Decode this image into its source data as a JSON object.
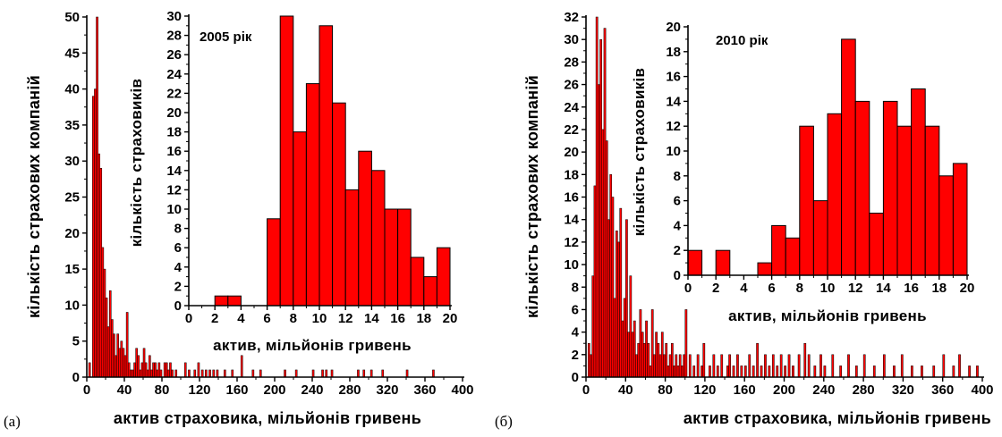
{
  "colors": {
    "bar_fill": "#ff0000",
    "bar_edge": "#000000",
    "axis": "#000000"
  },
  "chart_data": [
    {
      "panel_label": "(а)",
      "type": "bar",
      "xlabel": "актив страховика, мільйонів гривень",
      "ylabel": "кількість страхових компаній",
      "xlim": [
        0,
        400
      ],
      "ylim": [
        0,
        50
      ],
      "xticks": [
        0,
        40,
        80,
        120,
        160,
        200,
        240,
        280,
        320,
        360,
        400
      ],
      "yticks": [
        0,
        5,
        10,
        15,
        20,
        25,
        30,
        35,
        40,
        45,
        50
      ],
      "bin_width": 2,
      "bars": [
        [
          2,
          2
        ],
        [
          4,
          0
        ],
        [
          6,
          39
        ],
        [
          8,
          40
        ],
        [
          10,
          50
        ],
        [
          12,
          31
        ],
        [
          14,
          29
        ],
        [
          16,
          18
        ],
        [
          18,
          15
        ],
        [
          20,
          11
        ],
        [
          22,
          7
        ],
        [
          24,
          12
        ],
        [
          26,
          8
        ],
        [
          28,
          6
        ],
        [
          30,
          3
        ],
        [
          32,
          6
        ],
        [
          34,
          4
        ],
        [
          36,
          5
        ],
        [
          38,
          4
        ],
        [
          40,
          3
        ],
        [
          42,
          9
        ],
        [
          44,
          2
        ],
        [
          46,
          1
        ],
        [
          48,
          1
        ],
        [
          50,
          2
        ],
        [
          52,
          4
        ],
        [
          54,
          3
        ],
        [
          56,
          1
        ],
        [
          58,
          2
        ],
        [
          60,
          4
        ],
        [
          62,
          2
        ],
        [
          64,
          1
        ],
        [
          66,
          3
        ],
        [
          68,
          1
        ],
        [
          70,
          2
        ],
        [
          72,
          2
        ],
        [
          74,
          1
        ],
        [
          76,
          2
        ],
        [
          78,
          1
        ],
        [
          82,
          2
        ],
        [
          84,
          2
        ],
        [
          86,
          1
        ],
        [
          88,
          2
        ],
        [
          90,
          1
        ],
        [
          94,
          1
        ],
        [
          104,
          2
        ],
        [
          108,
          1
        ],
        [
          114,
          1
        ],
        [
          118,
          2
        ],
        [
          122,
          1
        ],
        [
          126,
          1
        ],
        [
          130,
          1
        ],
        [
          134,
          1
        ],
        [
          138,
          1
        ],
        [
          146,
          1
        ],
        [
          154,
          1
        ],
        [
          164,
          3
        ],
        [
          176,
          1
        ],
        [
          184,
          1
        ],
        [
          210,
          1
        ],
        [
          222,
          1
        ],
        [
          240,
          1
        ],
        [
          250,
          1
        ],
        [
          254,
          1
        ],
        [
          260,
          1
        ],
        [
          288,
          1
        ],
        [
          294,
          1
        ],
        [
          302,
          1
        ],
        [
          314,
          1
        ],
        [
          340,
          1
        ],
        [
          368,
          1
        ]
      ],
      "inset": {
        "title": "2005 рік",
        "type": "bar",
        "xlabel": "актив, мільйонів гривень",
        "ylabel": "кількість страховиків",
        "xlim": [
          0,
          20
        ],
        "ylim": [
          0,
          30
        ],
        "xticks": [
          0,
          2,
          4,
          6,
          8,
          10,
          12,
          14,
          16,
          18,
          20
        ],
        "yticks": [
          0,
          2,
          4,
          6,
          8,
          10,
          12,
          14,
          16,
          18,
          20,
          22,
          24,
          26,
          28,
          30
        ],
        "bin_width": 1,
        "bars": [
          [
            2,
            1
          ],
          [
            3,
            1
          ],
          [
            6,
            9
          ],
          [
            7,
            30
          ],
          [
            8,
            18
          ],
          [
            9,
            23
          ],
          [
            10,
            29
          ],
          [
            11,
            21
          ],
          [
            12,
            12
          ],
          [
            13,
            16
          ],
          [
            14,
            14
          ],
          [
            15,
            10
          ],
          [
            16,
            10
          ],
          [
            17,
            5
          ],
          [
            18,
            3
          ],
          [
            19,
            6
          ]
        ]
      }
    },
    {
      "panel_label": "(б)",
      "type": "bar",
      "xlabel": "актив страховика, мільйонів гривень",
      "ylabel": "кількість страхових компаній",
      "xlim": [
        0,
        400
      ],
      "ylim": [
        0,
        32
      ],
      "xticks": [
        0,
        40,
        80,
        120,
        160,
        200,
        240,
        280,
        320,
        360,
        400
      ],
      "yticks": [
        0,
        2,
        4,
        6,
        8,
        10,
        12,
        14,
        16,
        18,
        20,
        22,
        24,
        26,
        28,
        30,
        32
      ],
      "bin_width": 2,
      "bars": [
        [
          2,
          3
        ],
        [
          4,
          2
        ],
        [
          6,
          9
        ],
        [
          8,
          17
        ],
        [
          10,
          32
        ],
        [
          12,
          26
        ],
        [
          14,
          30
        ],
        [
          16,
          22
        ],
        [
          18,
          31
        ],
        [
          20,
          21
        ],
        [
          22,
          14
        ],
        [
          24,
          18
        ],
        [
          26,
          16
        ],
        [
          28,
          7
        ],
        [
          30,
          13
        ],
        [
          32,
          12
        ],
        [
          34,
          15
        ],
        [
          36,
          5
        ],
        [
          38,
          7
        ],
        [
          40,
          14
        ],
        [
          42,
          4
        ],
        [
          44,
          9
        ],
        [
          46,
          4
        ],
        [
          48,
          5
        ],
        [
          50,
          2
        ],
        [
          52,
          3
        ],
        [
          54,
          6
        ],
        [
          56,
          4
        ],
        [
          58,
          3
        ],
        [
          60,
          5
        ],
        [
          62,
          3
        ],
        [
          64,
          1
        ],
        [
          66,
          6
        ],
        [
          68,
          2
        ],
        [
          70,
          4
        ],
        [
          72,
          3
        ],
        [
          74,
          2
        ],
        [
          76,
          4
        ],
        [
          78,
          2
        ],
        [
          80,
          3
        ],
        [
          82,
          1
        ],
        [
          84,
          2
        ],
        [
          86,
          3
        ],
        [
          88,
          1
        ],
        [
          90,
          2
        ],
        [
          92,
          1
        ],
        [
          94,
          2
        ],
        [
          96,
          1
        ],
        [
          98,
          2
        ],
        [
          100,
          6
        ],
        [
          104,
          2
        ],
        [
          108,
          1
        ],
        [
          112,
          2
        ],
        [
          116,
          1
        ],
        [
          118,
          3
        ],
        [
          124,
          1
        ],
        [
          128,
          2
        ],
        [
          132,
          1
        ],
        [
          136,
          2
        ],
        [
          142,
          1
        ],
        [
          144,
          2
        ],
        [
          148,
          1
        ],
        [
          152,
          2
        ],
        [
          156,
          1
        ],
        [
          160,
          1
        ],
        [
          164,
          2
        ],
        [
          168,
          1
        ],
        [
          172,
          3
        ],
        [
          176,
          1
        ],
        [
          180,
          2
        ],
        [
          184,
          1
        ],
        [
          188,
          2
        ],
        [
          192,
          1
        ],
        [
          196,
          2
        ],
        [
          200,
          1
        ],
        [
          204,
          2
        ],
        [
          208,
          1
        ],
        [
          214,
          2
        ],
        [
          220,
          3
        ],
        [
          224,
          2
        ],
        [
          230,
          1
        ],
        [
          236,
          2
        ],
        [
          240,
          1
        ],
        [
          248,
          2
        ],
        [
          256,
          1
        ],
        [
          264,
          2
        ],
        [
          272,
          1
        ],
        [
          280,
          2
        ],
        [
          290,
          1
        ],
        [
          300,
          2
        ],
        [
          310,
          1
        ],
        [
          318,
          2
        ],
        [
          328,
          1
        ],
        [
          338,
          1
        ],
        [
          350,
          1
        ],
        [
          360,
          2
        ],
        [
          370,
          1
        ],
        [
          376,
          2
        ],
        [
          386,
          1
        ],
        [
          394,
          1
        ]
      ],
      "inset": {
        "title": "2010 рік",
        "type": "bar",
        "xlabel": "актив, мільйонів гривень",
        "ylabel": "кількість страховиків",
        "xlim": [
          0,
          20
        ],
        "ylim": [
          0,
          20
        ],
        "xticks": [
          0,
          2,
          4,
          6,
          8,
          10,
          12,
          14,
          16,
          18,
          20
        ],
        "yticks": [
          0,
          2,
          4,
          6,
          8,
          10,
          12,
          14,
          16,
          18,
          20
        ],
        "bin_width": 1,
        "bars": [
          [
            0,
            2
          ],
          [
            2,
            2
          ],
          [
            5,
            1
          ],
          [
            6,
            4
          ],
          [
            7,
            3
          ],
          [
            8,
            12
          ],
          [
            9,
            6
          ],
          [
            10,
            13
          ],
          [
            11,
            19
          ],
          [
            12,
            14
          ],
          [
            13,
            5
          ],
          [
            14,
            14
          ],
          [
            15,
            12
          ],
          [
            16,
            15
          ],
          [
            17,
            12
          ],
          [
            18,
            8
          ],
          [
            19,
            9
          ]
        ]
      }
    }
  ]
}
